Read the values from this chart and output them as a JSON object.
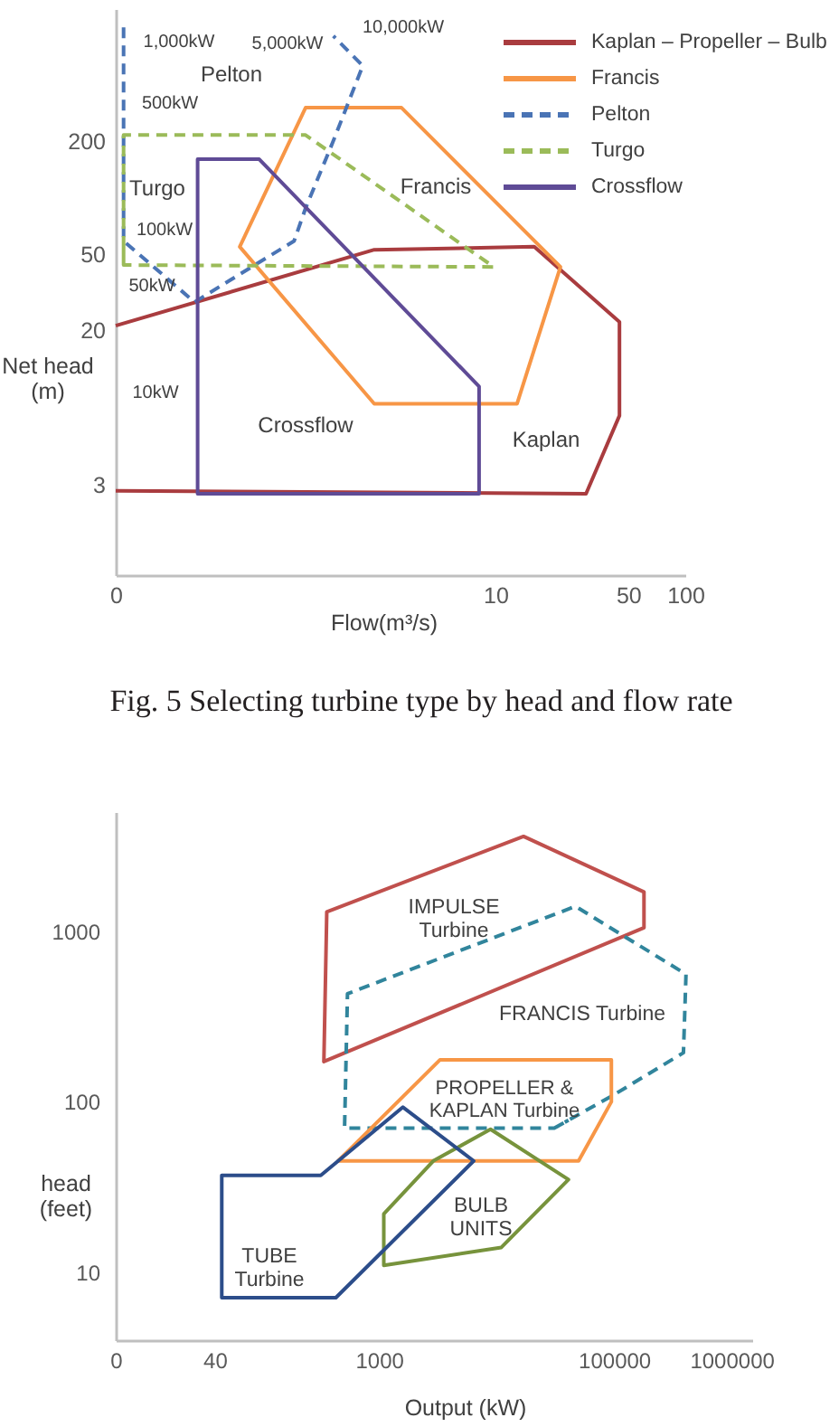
{
  "chart_data": [
    {
      "type": "line",
      "xlabel": "Flow(m³/s)",
      "ylabel": "Net head\n(m)",
      "log": "xy",
      "xlim": [
        0,
        100
      ],
      "xticks": [
        0,
        10,
        50,
        100
      ],
      "ylim": [
        1,
        1000
      ],
      "yticks": [
        3,
        20,
        50,
        200
      ],
      "legend": "top right",
      "series": [
        {
          "name": "Kaplan – Propeller – Bulb",
          "color": "#a93c3f",
          "line_style": "solid",
          "x": [
            0.1,
            2.3,
            16,
            45,
            45,
            30,
            0.1
          ],
          "values": [
            21,
            53,
            55,
            22,
            7.0,
            2.7,
            2.8
          ]
        },
        {
          "name": "Francis",
          "color": "#f79646",
          "line_style": "solid",
          "x": [
            0.45,
            1.0,
            3.2,
            22,
            13,
            2.3,
            0.45,
            1.0
          ],
          "values": [
            55,
            300,
            300,
            43,
            8.1,
            8.1,
            55,
            300
          ]
        },
        {
          "name": "Pelton",
          "color": "#4a74b5",
          "line_style": "dashed",
          "x": [
            0.11,
            0.11,
            0.26,
            0.54,
            0.87,
            1.0,
            1.4,
            2.0,
            1.4
          ],
          "values": [
            800,
            59,
            28,
            44,
            59,
            88,
            200,
            500,
            720
          ]
        },
        {
          "name": "Turgo",
          "color": "#9bbb59",
          "line_style": "dashed",
          "x": [
            0.11,
            0.11,
            1.0,
            9.8,
            0.11,
            0.11
          ],
          "values": [
            44,
            215,
            215,
            43,
            44,
            60
          ]
        },
        {
          "name": "Crossflow",
          "color": "#5f4b96",
          "line_style": "solid",
          "x": [
            0.27,
            0.57,
            8.2,
            8.2,
            0.27,
            0.27,
            0.57
          ],
          "values": [
            160,
            160,
            10,
            2.7,
            2.7,
            160,
            160
          ]
        }
      ],
      "annotations": [
        "1,000kW",
        "5,000kW",
        "10,000kW",
        "Pelton",
        "500kW",
        "Turgo",
        "100kW",
        "50kW",
        "10kW",
        "Francis",
        "Crossflow",
        "Kaplan",
        "Fig. 5 Selecting turbine type by head and flow rate"
      ]
    },
    {
      "type": "line",
      "xlabel": "Output (kW)",
      "ylabel": "head\n(feet)",
      "log": "xy",
      "xlim": [
        0,
        1500000
      ],
      "xticks": [
        0,
        40,
        1000,
        100000,
        1000000
      ],
      "ylim": [
        4,
        5000
      ],
      "yticks": [
        10,
        100,
        1000
      ],
      "series": [
        {
          "color": "#c0504d",
          "line_style": "solid",
          "x": [
            360,
            17000,
            180000,
            180000,
            340,
            360,
            17000
          ],
          "values": [
            1300,
            3600,
            1700,
            1050,
            172,
            1300,
            3600
          ]
        },
        {
          "color": "#31859c",
          "line_style": "dashed",
          "x": [
            31000,
            100000,
            390000,
            410000,
            47000,
            540,
            510,
            31000,
            41000
          ],
          "values": [
            70,
            110,
            194,
            560,
            1400,
            430,
            70,
            70,
            78
          ]
        },
        {
          "color": "#f79646",
          "line_style": "solid",
          "x": [
            450,
            3300,
            95000,
            95000,
            50000,
            450,
            3300
          ],
          "values": [
            45,
            176,
            176,
            100,
            45,
            45,
            176
          ]
        },
        {
          "color": "#77933c",
          "line_style": "solid",
          "x": [
            8900,
            41000,
            11000,
            1100,
            1100,
            2900,
            8900,
            41000
          ],
          "values": [
            69,
            35,
            14,
            11,
            22,
            45,
            69,
            35
          ]
        },
        {
          "color": "#2c4d8a",
          "line_style": "solid",
          "x": [
            46,
            320,
            1600,
            6400,
            430,
            46,
            46,
            320
          ],
          "values": [
            37,
            37,
            93,
            45,
            7.1,
            7.1,
            37,
            37
          ]
        }
      ],
      "annotations": [
        "IMPULSE\nTurbine",
        "FRANCIS Turbine",
        "PROPELLER &\nKAPLAN Turbine",
        "BULB\nUNITS",
        "TUBE\nTurbine"
      ]
    }
  ]
}
